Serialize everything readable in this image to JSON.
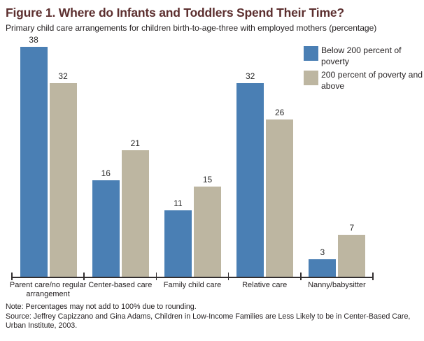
{
  "figure": {
    "title": "Figure 1. Where do Infants and Toddlers Spend Their Time?",
    "subtitle": "Primary child care arrangements for children birth-to-age-three with employed mothers (percentage)",
    "note": "Note: Percentages may not add to 100% due to rounding.",
    "source_line1": "Source: Jeffrey Capizzano and Gina Adams, Children in Low-Income Families are Less Likely to be in Center-Based Care,",
    "source_line2": "Urban Institute, 2003."
  },
  "colors": {
    "series_below_200": "#4a7fb4",
    "series_200_above": "#bdb6a1",
    "title_accent": "#5c2f2f",
    "axis": "#332f30"
  },
  "chart_data": {
    "type": "bar",
    "categories": [
      "Parent care/no regular arrangement",
      "Center-based care",
      "Family child care",
      "Relative care",
      "Nanny/babysitter"
    ],
    "series": [
      {
        "name": "Below 200 percent of poverty",
        "color": "#4a7fb4",
        "values": [
          38,
          16,
          11,
          32,
          3
        ]
      },
      {
        "name": "200 percent of poverty and above",
        "color": "#bdb6a1",
        "values": [
          32,
          21,
          15,
          26,
          7
        ]
      }
    ],
    "title": "Figure 1. Where do Infants and Toddlers Spend Their Time?",
    "subtitle": "Primary child care arrangements for children birth-to-age-three with employed mothers (percentage)",
    "xlabel": "",
    "ylabel": "",
    "ylim": [
      0,
      40
    ],
    "grid": false,
    "value_labels": true,
    "legend_position": "top-right"
  },
  "legend": {
    "items": [
      {
        "label": "Below 200 percent of poverty",
        "line1": "Below 200 percent of",
        "line2": "poverty",
        "color": "#4a7fb4"
      },
      {
        "label": "200 percent of poverty and above",
        "line1": "200 percent of poverty and",
        "line2": "above",
        "color": "#bdb6a1"
      }
    ]
  }
}
